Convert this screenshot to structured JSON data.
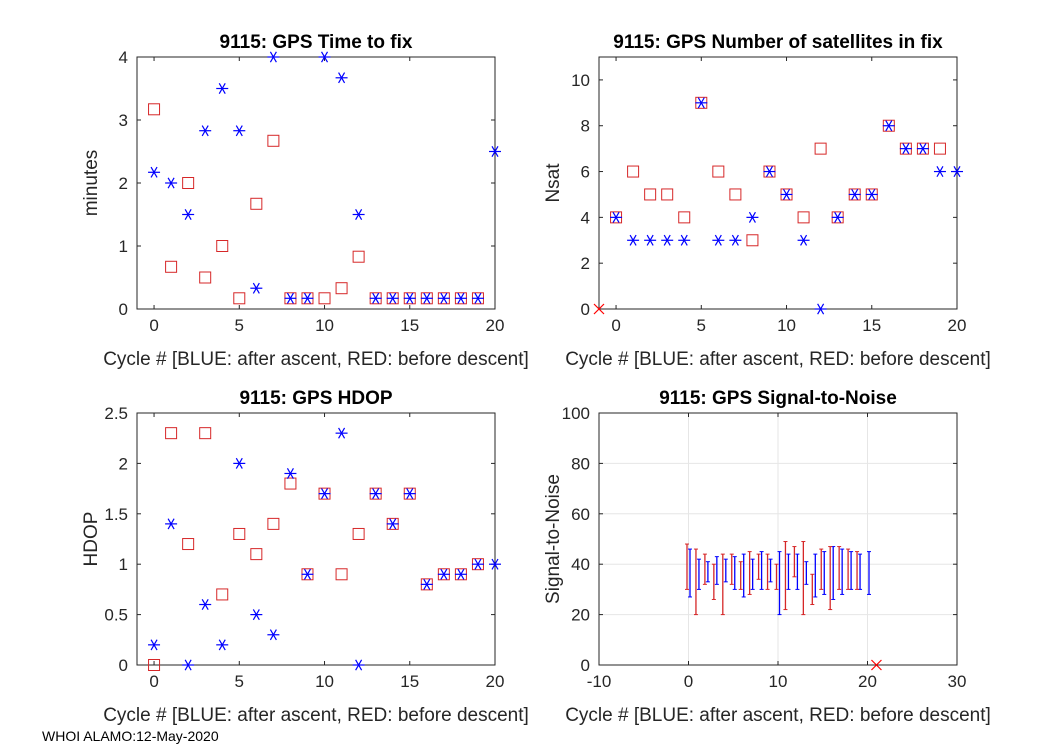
{
  "footer": "WHOI ALAMO:12-May-2020",
  "colors": {
    "after_ascent": "#0000ff",
    "before_descent": "#d62728",
    "axis": "#262626",
    "grid": "#e6e6e6"
  },
  "chart_data": [
    {
      "type": "scatter",
      "title": "9115: GPS Time to fix",
      "xlabel": "Cycle #  [BLUE: after ascent, RED: before descent]",
      "ylabel": "minutes",
      "xlim": [
        -1,
        20
      ],
      "ylim": [
        0,
        4
      ],
      "xticks": [
        0,
        5,
        10,
        15,
        20
      ],
      "yticks": [
        0,
        1,
        2,
        3,
        4
      ],
      "series": [
        {
          "name": "after ascent",
          "marker": "asterisk",
          "x": [
            0,
            1,
            2,
            3,
            4,
            5,
            6,
            7,
            8,
            9,
            10,
            11,
            12,
            13,
            14,
            15,
            16,
            17,
            18,
            19,
            20
          ],
          "y": [
            2.17,
            2.0,
            1.5,
            2.83,
            3.5,
            2.83,
            0.33,
            4.0,
            0.17,
            0.17,
            4.0,
            3.67,
            1.5,
            0.17,
            0.17,
            0.17,
            0.17,
            0.17,
            0.17,
            0.17,
            2.5
          ]
        },
        {
          "name": "before descent",
          "marker": "square",
          "x": [
            0,
            1,
            2,
            3,
            4,
            5,
            6,
            7,
            8,
            9,
            10,
            11,
            12,
            13,
            14,
            15,
            16,
            17,
            18,
            19
          ],
          "y": [
            3.17,
            0.67,
            2.0,
            0.5,
            1.0,
            0.17,
            1.67,
            2.67,
            0.17,
            0.17,
            0.17,
            0.33,
            0.83,
            0.17,
            0.17,
            0.17,
            0.17,
            0.17,
            0.17,
            0.17
          ]
        }
      ]
    },
    {
      "type": "scatter",
      "title": "9115: GPS Number of satellites in fix",
      "xlabel": "Cycle #  [BLUE: after ascent, RED: before descent]",
      "ylabel": "Nsat",
      "xlim": [
        -1,
        20
      ],
      "ylim": [
        0,
        11
      ],
      "xticks": [
        0,
        5,
        10,
        15,
        20
      ],
      "yticks": [
        0,
        2,
        4,
        6,
        8,
        10
      ],
      "series": [
        {
          "name": "after ascent",
          "marker": "asterisk",
          "x": [
            0,
            1,
            2,
            3,
            4,
            5,
            6,
            7,
            8,
            9,
            10,
            11,
            12,
            13,
            14,
            15,
            16,
            17,
            18,
            19,
            20
          ],
          "y": [
            4,
            3,
            3,
            3,
            3,
            9,
            3,
            3,
            4,
            6,
            5,
            3,
            0,
            4,
            5,
            5,
            8,
            7,
            7,
            6,
            6
          ]
        },
        {
          "name": "before descent",
          "marker": "square",
          "x": [
            0,
            1,
            2,
            3,
            4,
            5,
            6,
            7,
            8,
            9,
            10,
            11,
            12,
            13,
            14,
            15,
            16,
            17,
            18,
            19
          ],
          "y": [
            4,
            6,
            5,
            5,
            4,
            9,
            6,
            5,
            3,
            6,
            5,
            4,
            7,
            4,
            5,
            5,
            8,
            7,
            7,
            7
          ]
        }
      ],
      "extra_markers": [
        {
          "marker": "x",
          "x": -1,
          "y": 0
        }
      ]
    },
    {
      "type": "scatter",
      "title": "9115: GPS HDOP",
      "xlabel": "Cycle #  [BLUE: after ascent, RED: before descent]",
      "ylabel": "HDOP",
      "xlim": [
        -1,
        20
      ],
      "ylim": [
        0,
        2.5
      ],
      "xticks": [
        0,
        5,
        10,
        15,
        20
      ],
      "yticks": [
        0,
        0.5,
        1,
        1.5,
        2,
        2.5
      ],
      "series": [
        {
          "name": "after ascent",
          "marker": "asterisk",
          "x": [
            0,
            1,
            2,
            3,
            4,
            5,
            6,
            7,
            8,
            9,
            10,
            11,
            12,
            13,
            14,
            15,
            16,
            17,
            18,
            19,
            20
          ],
          "y": [
            0.2,
            1.4,
            0.0,
            0.6,
            0.2,
            2.0,
            0.5,
            0.3,
            1.9,
            0.9,
            1.7,
            2.3,
            0.0,
            1.7,
            1.4,
            1.7,
            0.8,
            0.9,
            0.9,
            1.0,
            1.0
          ]
        },
        {
          "name": "before descent",
          "marker": "square",
          "x": [
            0,
            1,
            2,
            3,
            4,
            5,
            6,
            7,
            8,
            9,
            10,
            11,
            12,
            13,
            14,
            15,
            16,
            17,
            18,
            19
          ],
          "y": [
            0.0,
            2.3,
            1.2,
            2.3,
            0.7,
            1.3,
            1.1,
            1.4,
            1.8,
            0.9,
            1.7,
            0.9,
            1.3,
            1.7,
            1.4,
            1.7,
            0.8,
            0.9,
            0.9,
            1.0
          ]
        }
      ]
    },
    {
      "type": "errorbar",
      "title": "9115: GPS Signal-to-Noise",
      "xlabel": "Cycle #  [BLUE: after ascent, RED: before descent]",
      "ylabel": "Signal-to-Noise",
      "xlim": [
        -10,
        30
      ],
      "ylim": [
        0,
        100
      ],
      "xticks": [
        -10,
        0,
        10,
        20,
        30
      ],
      "yticks": [
        0,
        20,
        40,
        60,
        80,
        100
      ],
      "grid": true,
      "series": [
        {
          "name": "after ascent",
          "x": [
            0,
            1,
            2,
            3,
            4,
            5,
            6,
            7,
            8,
            9,
            10,
            11,
            12,
            13,
            14,
            15,
            16,
            17,
            18,
            19,
            20
          ],
          "low": [
            27,
            30,
            33,
            32,
            33,
            30,
            27,
            30,
            30,
            33,
            20,
            30,
            30,
            32,
            27,
            28,
            26,
            28,
            30,
            30,
            28
          ],
          "high": [
            46,
            42,
            41,
            43,
            42,
            43,
            44,
            42,
            45,
            42,
            45,
            44,
            44,
            41,
            44,
            45,
            47,
            46,
            45,
            44,
            45
          ]
        },
        {
          "name": "before descent",
          "x": [
            0,
            1,
            2,
            3,
            4,
            5,
            6,
            7,
            8,
            9,
            10,
            11,
            12,
            13,
            14,
            15,
            16,
            17,
            18,
            19
          ],
          "low": [
            30,
            20,
            32,
            26,
            20,
            32,
            30,
            28,
            34,
            30,
            30,
            22,
            35,
            20,
            24,
            30,
            22,
            30,
            30,
            30
          ],
          "high": [
            48,
            46,
            44,
            40,
            44,
            44,
            41,
            45,
            44,
            44,
            40,
            49,
            47,
            49,
            36,
            46,
            47,
            47,
            46,
            45
          ]
        }
      ],
      "extra_markers": [
        {
          "marker": "x",
          "x": 21,
          "y": 0
        }
      ]
    }
  ]
}
